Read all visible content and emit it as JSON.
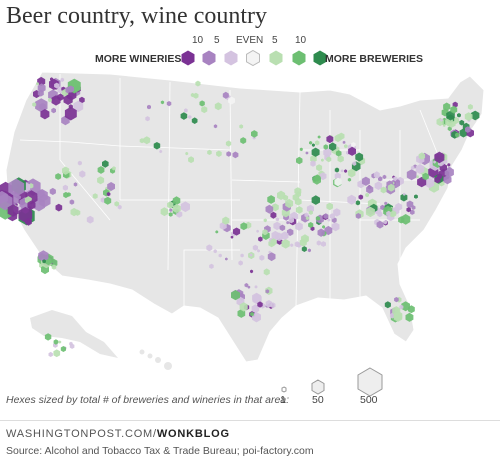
{
  "title": "Beer country, wine country",
  "legend": {
    "more_wineries": "MORE WINERIES",
    "more_breweries": "MORE BREWERIES",
    "scale_labels": [
      "10",
      "5",
      "EVEN",
      "5",
      "10"
    ],
    "colors": [
      "#7b3294",
      "#a883c1",
      "#d4c3e0",
      "#f4f4f4",
      "#b9dfb1",
      "#6dbf72",
      "#2e8b4e"
    ]
  },
  "size_legend": {
    "caption": "Hexes sized by total # of breweries and wineries in that area:",
    "values": [
      "1",
      "50",
      "500"
    ]
  },
  "credit": {
    "site": "WASHINGTONPOST.COM/",
    "section": "WONKBLOG"
  },
  "source": "Source: Alcohol and Tobacco Tax & Trade Bureau; poi-factory.com"
}
